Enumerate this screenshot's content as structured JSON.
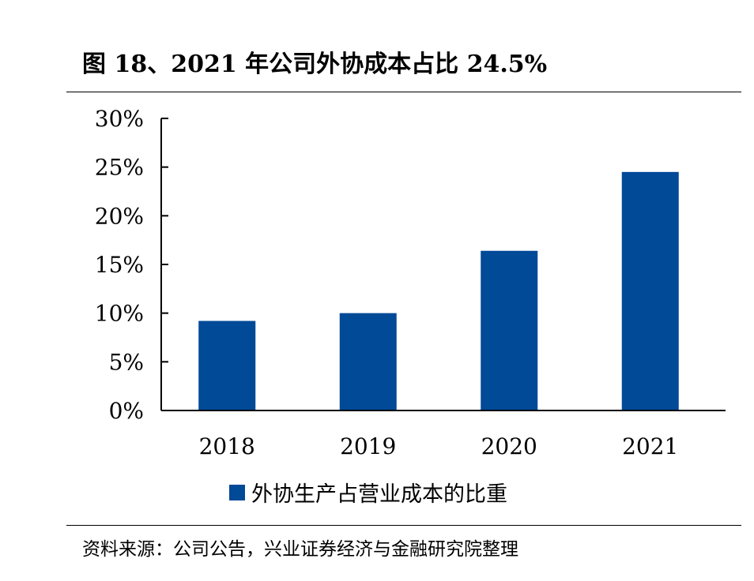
{
  "figure": {
    "title": "图 18、2021 年公司外协成本占比 24.5%",
    "source": "资料来源：公司公告，兴业证券经济与金融研究院整理"
  },
  "colors": {
    "bar": "#004a98",
    "axis": "#000000"
  },
  "chart_data": {
    "type": "bar",
    "categories": [
      "2018",
      "2019",
      "2020",
      "2021"
    ],
    "series": [
      {
        "name": "外协生产占营业成本的比重",
        "values": [
          9.2,
          10.0,
          16.4,
          24.5
        ]
      }
    ],
    "ylim": [
      0,
      30
    ],
    "yticks": [
      0,
      5,
      10,
      15,
      20,
      25,
      30
    ],
    "ytick_labels": [
      "0%",
      "5%",
      "10%",
      "15%",
      "20%",
      "25%",
      "30%"
    ],
    "unit": "%",
    "grid": false,
    "legend_position": "bottom",
    "xlabel": "",
    "ylabel": ""
  }
}
